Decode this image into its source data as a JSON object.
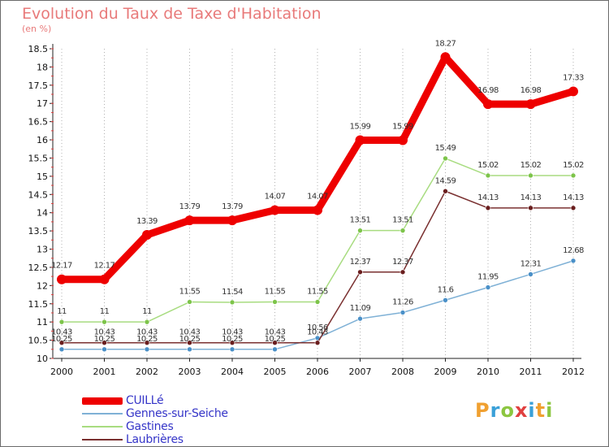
{
  "header": {
    "title": "Evolution du Taux de Taxe d'Habitation",
    "subtitle": "(en %)"
  },
  "logo": {
    "letters": [
      "P",
      "r",
      "o",
      "x",
      "i",
      "t",
      "i"
    ],
    "colors": [
      "#f0a030",
      "#3aa0d8",
      "#8cc640",
      "#e04040",
      "#3aa0d8",
      "#f0a030",
      "#8cc640"
    ]
  },
  "chart_data": {
    "type": "line",
    "title": "Evolution du Taux de Taxe d'Habitation",
    "ylabel": "(en %)",
    "xlabel": "",
    "x": [
      "2000",
      "2001",
      "2002",
      "2003",
      "2004",
      "2005",
      "2006",
      "2007",
      "2008",
      "2009",
      "2010",
      "2011",
      "2012"
    ],
    "ylim": [
      10,
      18.5
    ],
    "yticks": [
      "10",
      "10.5",
      "11",
      "11.5",
      "12",
      "12.5",
      "13",
      "13.5",
      "14",
      "14.5",
      "15",
      "15.5",
      "16",
      "16.5",
      "17",
      "17.5",
      "18",
      "18.5"
    ],
    "grid": "dotted vertical lines at each year",
    "legend": "bottom-left",
    "series": [
      {
        "name": "Gennes-sur-Seiche",
        "color": "#7fb1d6",
        "marker": "#4a90c8",
        "values": [
          10.25,
          10.25,
          10.25,
          10.25,
          10.25,
          10.25,
          10.56,
          11.09,
          11.26,
          11.6,
          11.95,
          12.31,
          12.68
        ],
        "labels": [
          "10.25",
          "10.25",
          "10.25",
          "10.25",
          "10.25",
          "10.25",
          "10.56",
          "11.09",
          "11.26",
          "11.6",
          "11.95",
          "12.31",
          "12.68"
        ]
      },
      {
        "name": "Laubrières",
        "color": "#7a3030",
        "marker": "#6a1e1e",
        "values": [
          10.43,
          10.43,
          10.43,
          10.43,
          10.43,
          10.43,
          10.43,
          12.37,
          12.37,
          14.59,
          14.13,
          14.13,
          14.13
        ],
        "labels": [
          "10.43",
          "10.43",
          "10.43",
          "10.43",
          "10.43",
          "10.43",
          "10.43",
          "12.37",
          "12.37",
          "14.59",
          "14.13",
          "14.13",
          "14.13"
        ]
      },
      {
        "name": "Gastines",
        "color": "#a8dc80",
        "marker": "#7dc44a",
        "values": [
          11,
          11,
          11,
          11.55,
          11.54,
          11.55,
          11.55,
          13.51,
          13.51,
          15.49,
          15.02,
          15.02,
          15.02
        ],
        "labels": [
          "11",
          "11",
          "11",
          "11.55",
          "11.54",
          "11.55",
          "11.55",
          "13.51",
          "13.51",
          "15.49",
          "15.02",
          "15.02",
          "15.02"
        ]
      },
      {
        "name": "CUILLé",
        "color": "#ee0000",
        "marker": "#ee0000",
        "values": [
          12.17,
          12.17,
          13.39,
          13.79,
          13.79,
          14.07,
          14.07,
          15.99,
          15.99,
          18.27,
          16.98,
          16.98,
          17.33
        ],
        "labels": [
          "12.17",
          "12.17",
          "13.39",
          "13.79",
          "13.79",
          "14.07",
          "14.07",
          "15.99",
          "15.99",
          "18.27",
          "16.98",
          "16.98",
          "17.33"
        ]
      }
    ],
    "legend_order": [
      "CUILLé",
      "Gennes-sur-Seiche",
      "Gastines",
      "Laubrières"
    ]
  }
}
